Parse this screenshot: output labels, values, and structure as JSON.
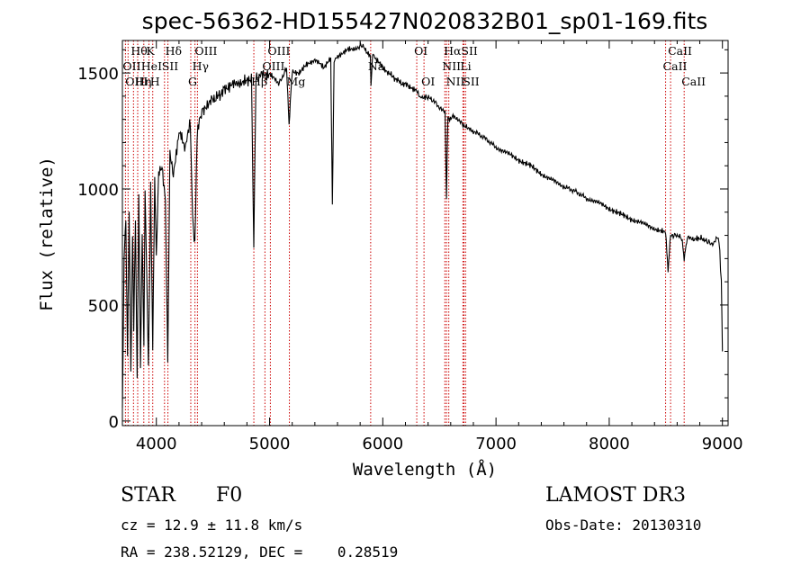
{
  "chart_data": {
    "type": "line",
    "title": "spec-56362-HD155427N020832B01_sp01-169.fits",
    "xlabel": "Wavelength (Å)",
    "ylabel": "Flux (relative)",
    "xlim": [
      3700,
      9050
    ],
    "ylim": [
      -20,
      1640
    ],
    "xticks": [
      4000,
      5000,
      6000,
      7000,
      8000,
      9000
    ],
    "yticks": [
      0,
      500,
      1000,
      1500
    ],
    "series": [
      {
        "name": "flux",
        "x": [
          3700,
          3715,
          3730,
          3745,
          3760,
          3775,
          3790,
          3800,
          3815,
          3830,
          3845,
          3860,
          3875,
          3890,
          3900,
          3915,
          3930,
          3950,
          3968,
          3985,
          4000,
          4020,
          4050,
          4080,
          4101,
          4120,
          4150,
          4200,
          4250,
          4300,
          4320,
          4340,
          4360,
          4380,
          4420,
          4480,
          4550,
          4620,
          4700,
          4780,
          4840,
          4861,
          4880,
          4920,
          5000,
          5080,
          5150,
          5172,
          5200,
          5260,
          5320,
          5400,
          5480,
          5540,
          5555,
          5570,
          5620,
          5700,
          5780,
          5820,
          5860,
          5890,
          5896,
          5910,
          5960,
          6050,
          6150,
          6250,
          6300,
          6330,
          6380,
          6450,
          6520,
          6550,
          6563,
          6575,
          6590,
          6620,
          6680,
          6750,
          6800,
          6900,
          7000,
          7150,
          7300,
          7450,
          7600,
          7700,
          7800,
          7950,
          8100,
          8250,
          8400,
          8498,
          8520,
          8542,
          8560,
          8600,
          8640,
          8662,
          8690,
          8750,
          8800,
          8840,
          8880,
          8920,
          8950,
          8970,
          8990,
          9000
        ],
        "y": [
          60,
          700,
          850,
          300,
          900,
          200,
          800,
          400,
          880,
          180,
          950,
          250,
          820,
          300,
          980,
          650,
          240,
          1000,
          300,
          1050,
          700,
          1080,
          1100,
          950,
          250,
          1150,
          1050,
          1250,
          1180,
          1280,
          880,
          750,
          1230,
          1300,
          1350,
          1380,
          1400,
          1440,
          1450,
          1470,
          1480,
          750,
          1470,
          1490,
          1500,
          1450,
          1520,
          1280,
          1510,
          1500,
          1530,
          1560,
          1520,
          1560,
          930,
          1550,
          1580,
          1600,
          1610,
          1620,
          1590,
          1570,
          1440,
          1580,
          1550,
          1500,
          1460,
          1440,
          1420,
          1390,
          1400,
          1380,
          1340,
          1330,
          960,
          1320,
          1300,
          1320,
          1290,
          1260,
          1250,
          1220,
          1180,
          1140,
          1100,
          1050,
          1010,
          990,
          960,
          930,
          890,
          860,
          830,
          810,
          650,
          800,
          800,
          800,
          790,
          700,
          790,
          780,
          790,
          780,
          770,
          760,
          790,
          780,
          600,
          300
        ]
      }
    ],
    "spectral_lines": [
      {
        "label": "Hθ",
        "wavelength": 3798,
        "row": 1
      },
      {
        "label": "OII",
        "wavelength": 3727,
        "row": 2
      },
      {
        "label": "OIII",
        "wavelength": 3750,
        "row": 3
      },
      {
        "label": "K",
        "wavelength": 3934,
        "row": 1
      },
      {
        "label": "HeI",
        "wavelength": 3889,
        "row": 2
      },
      {
        "label": "Hη",
        "wavelength": 3835,
        "row": 3
      },
      {
        "label": "Hδ",
        "wavelength": 4102,
        "row": 1
      },
      {
        "label": "SII",
        "wavelength": 4072,
        "row": 2
      },
      {
        "label": "H",
        "wavelength": 3968,
        "row": 3
      },
      {
        "label": "OIII",
        "wavelength": 4363,
        "row": 1
      },
      {
        "label": "Hγ",
        "wavelength": 4341,
        "row": 2
      },
      {
        "label": "G",
        "wavelength": 4304,
        "row": 3
      },
      {
        "label": "OIII",
        "wavelength": 5007,
        "row": 1
      },
      {
        "label": "OIII",
        "wavelength": 4959,
        "row": 2
      },
      {
        "label": "Hβ",
        "wavelength": 4861,
        "row": 3
      },
      {
        "label": "Mg",
        "wavelength": 5175,
        "row": 3
      },
      {
        "label": "Na",
        "wavelength": 5893,
        "row": 2
      },
      {
        "label": "OI",
        "wavelength": 6300,
        "row": 1
      },
      {
        "label": "OI",
        "wavelength": 6364,
        "row": 3
      },
      {
        "label": "Hα",
        "wavelength": 6563,
        "row": 1
      },
      {
        "label": "SII",
        "wavelength": 6716,
        "row": 1
      },
      {
        "label": "NII",
        "wavelength": 6548,
        "row": 2
      },
      {
        "label": "Li",
        "wavelength": 6708,
        "row": 2
      },
      {
        "label": "NII",
        "wavelength": 6583,
        "row": 3
      },
      {
        "label": "SII",
        "wavelength": 6731,
        "row": 3
      },
      {
        "label": "CaII",
        "wavelength": 8542,
        "row": 1
      },
      {
        "label": "CaII",
        "wavelength": 8498,
        "row": 2
      },
      {
        "label": "CaII",
        "wavelength": 8662,
        "row": 3
      }
    ]
  },
  "info": {
    "object_class": "STAR",
    "subclass": "F0",
    "survey": "LAMOST DR3",
    "redshift": "cz = 12.9 ± 11.8 km/s",
    "obs_date": "Obs-Date: 20130310",
    "coords": "RA = 238.52129, DEC =    0.28519"
  },
  "colors": {
    "spectrum": "#000000",
    "line_marker": "#cc0000"
  }
}
